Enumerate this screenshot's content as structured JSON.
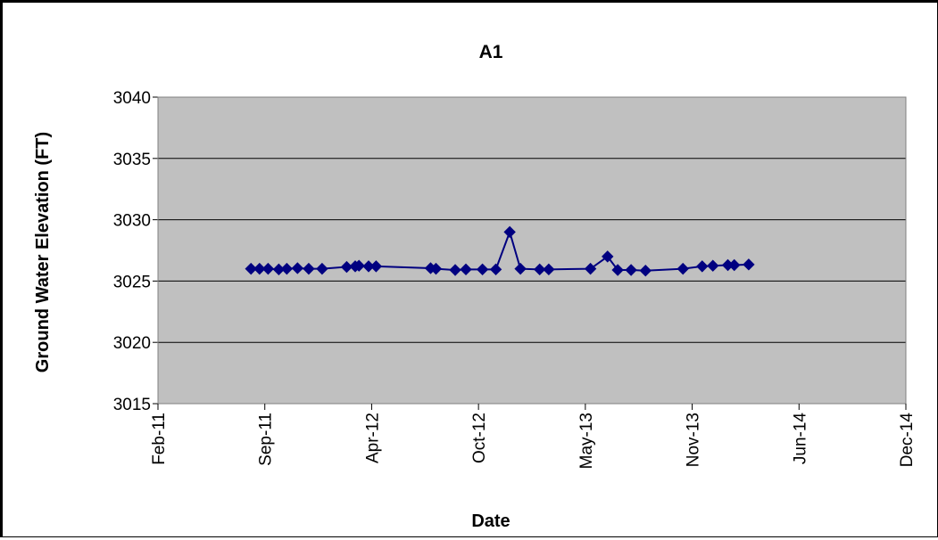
{
  "chart_data": {
    "type": "line",
    "title": "A1",
    "xlabel": "Date",
    "ylabel": "Ground Water Elevation (FT)",
    "xlim": [
      "2011-02-01",
      "2014-12-01"
    ],
    "ylim": [
      3015,
      3040
    ],
    "x_ticks": [
      "Feb-11",
      "Sep-11",
      "Apr-12",
      "Oct-12",
      "May-13",
      "Nov-13",
      "Jun-14",
      "Dec-14"
    ],
    "y_ticks": [
      "3015",
      "3020",
      "3025",
      "3030",
      "3035",
      "3040"
    ],
    "grid": "horizontal",
    "colors": {
      "series": "#000080",
      "plot_bg": "#c0c0c0",
      "grid": "#000000"
    },
    "series": [
      {
        "marker": "diamond",
        "points": [
          {
            "x": "2011-07-25",
            "y": 3026.0
          },
          {
            "x": "2011-08-10",
            "y": 3026.0
          },
          {
            "x": "2011-08-26",
            "y": 3026.0
          },
          {
            "x": "2011-09-15",
            "y": 3025.95
          },
          {
            "x": "2011-09-30",
            "y": 3026.0
          },
          {
            "x": "2011-10-20",
            "y": 3026.05
          },
          {
            "x": "2011-11-10",
            "y": 3026.0
          },
          {
            "x": "2011-12-05",
            "y": 3026.0
          },
          {
            "x": "2012-01-20",
            "y": 3026.15
          },
          {
            "x": "2012-02-05",
            "y": 3026.2
          },
          {
            "x": "2012-02-12",
            "y": 3026.25
          },
          {
            "x": "2012-03-01",
            "y": 3026.2
          },
          {
            "x": "2012-03-15",
            "y": 3026.2
          },
          {
            "x": "2012-06-25",
            "y": 3026.05
          },
          {
            "x": "2012-07-05",
            "y": 3026.0
          },
          {
            "x": "2012-08-10",
            "y": 3025.9
          },
          {
            "x": "2012-08-30",
            "y": 3025.95
          },
          {
            "x": "2012-09-30",
            "y": 3025.95
          },
          {
            "x": "2012-10-25",
            "y": 3025.95
          },
          {
            "x": "2012-11-20",
            "y": 3029.0
          },
          {
            "x": "2012-12-10",
            "y": 3026.0
          },
          {
            "x": "2013-01-15",
            "y": 3025.95
          },
          {
            "x": "2013-02-01",
            "y": 3025.95
          },
          {
            "x": "2013-04-20",
            "y": 3026.0
          },
          {
            "x": "2013-05-22",
            "y": 3027.0
          },
          {
            "x": "2013-06-10",
            "y": 3025.9
          },
          {
            "x": "2013-07-05",
            "y": 3025.9
          },
          {
            "x": "2013-08-01",
            "y": 3025.85
          },
          {
            "x": "2013-10-10",
            "y": 3026.0
          },
          {
            "x": "2013-11-15",
            "y": 3026.2
          },
          {
            "x": "2013-12-05",
            "y": 3026.25
          },
          {
            "x": "2014-01-02",
            "y": 3026.3
          },
          {
            "x": "2014-01-14",
            "y": 3026.3
          },
          {
            "x": "2014-02-10",
            "y": 3026.35
          }
        ]
      }
    ]
  }
}
